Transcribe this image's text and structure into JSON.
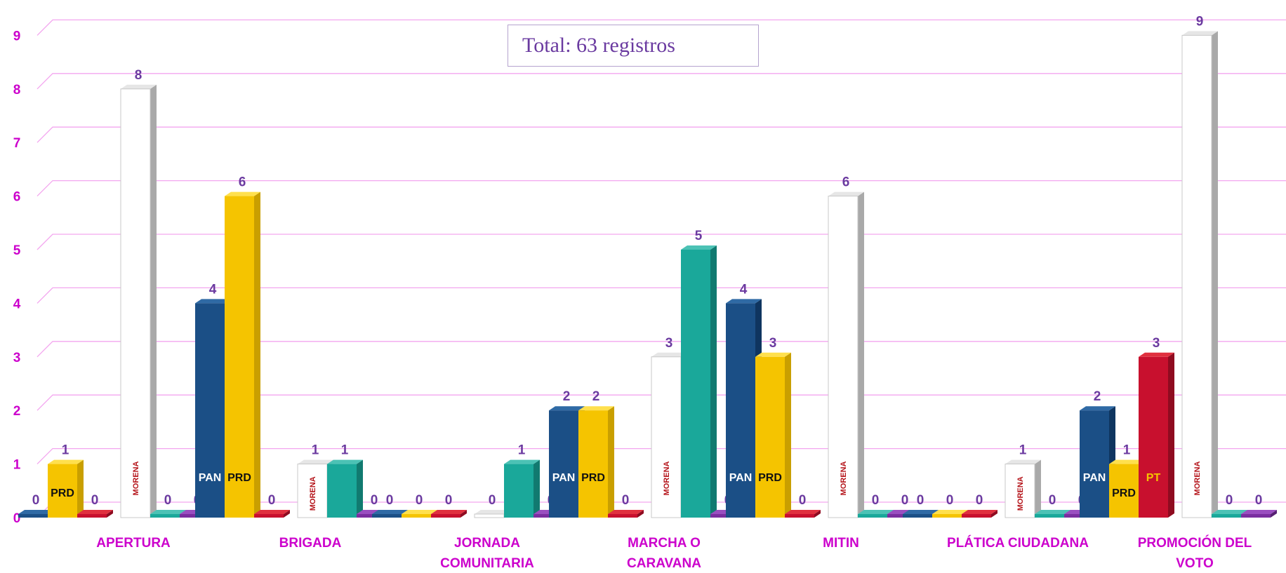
{
  "chart_data": {
    "type": "bar",
    "title": "",
    "xlabel": "",
    "ylabel": "",
    "ylim": [
      0,
      9
    ],
    "yticks": [
      "0",
      "1",
      "2",
      "3",
      "4",
      "5",
      "6",
      "7",
      "8",
      "9"
    ],
    "grid": true,
    "legend": "none",
    "annotation": "Total: 63 registros",
    "categories": [
      {
        "label": [
          "APERTURA"
        ],
        "values": [
          0,
          1,
          0,
          8,
          0,
          0
        ]
      },
      {
        "label": [
          "BRIGADA"
        ],
        "values": [
          4,
          6,
          0,
          1,
          1,
          0
        ]
      },
      {
        "label": [
          "JORNADA",
          "COMUNITARIA"
        ],
        "values": [
          0,
          0,
          0,
          0,
          1,
          0
        ]
      },
      {
        "label": [
          "MARCHA O",
          "CARAVANA"
        ],
        "values": [
          2,
          2,
          0,
          3,
          5,
          0
        ]
      },
      {
        "label": [
          "MITIN"
        ],
        "values": [
          4,
          3,
          0,
          6,
          0,
          0
        ]
      },
      {
        "label": [
          "PLÁTICA CIUDADANA"
        ],
        "values": [
          0,
          0,
          0,
          1,
          0,
          0
        ]
      },
      {
        "label": [
          "PROMOCIÓN DEL",
          "VOTO"
        ],
        "values": [
          2,
          1,
          3,
          9,
          0,
          0
        ]
      }
    ],
    "bar_styles": [
      {
        "face": "#1b4f86",
        "side": "#0f3560",
        "top": "#2f6aa5",
        "logo": "PAN",
        "logo_color": "#ffffff"
      },
      {
        "face": "#f5c400",
        "side": "#c99f00",
        "top": "#ffe04d",
        "logo": "PRD",
        "logo_color": "#111111"
      },
      {
        "face": "#c8102e",
        "side": "#8f0b20",
        "top": "#e0303f",
        "logo": "PT",
        "logo_color": "#f5c400"
      },
      {
        "face": "#ffffff",
        "side": "#a9a9a9",
        "top": "#e6e6e6",
        "logo": "MORENA",
        "logo_color": "#b5151b"
      },
      {
        "face": "#1aa89a",
        "side": "#117a70",
        "top": "#4cc2b5",
        "logo": "",
        "logo_color": "#ffffff"
      },
      {
        "face": "#7a2ea0",
        "side": "#561f72",
        "top": "#9a4ec0",
        "logo": "",
        "logo_color": "#ffffff"
      }
    ],
    "colors": {
      "grid": "#f3a6ef",
      "tick_label": "#cc00cc",
      "value_label": "#6b3aa0",
      "category_label": "#cc00cc"
    }
  }
}
